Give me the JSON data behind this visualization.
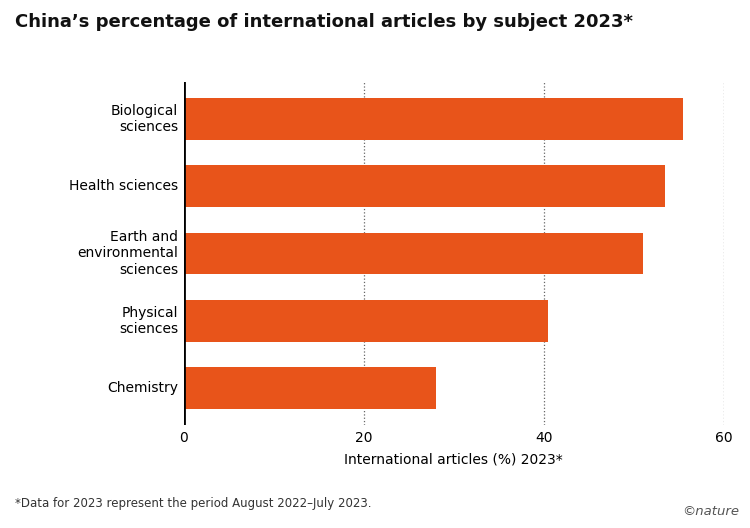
{
  "title": "China’s percentage of international articles by subject 2023*",
  "categories": [
    "Biological\nsciences",
    "Health sciences",
    "Earth and\nenvironmental\nsciences",
    "Physical\nsciences",
    "Chemistry"
  ],
  "values": [
    55.5,
    53.5,
    51.0,
    40.5,
    28.0
  ],
  "bar_color": "#E8541A",
  "xlabel": "International articles (%) 2023*",
  "xlim": [
    0,
    60
  ],
  "xticks": [
    0,
    20,
    40,
    60
  ],
  "footnote": "*Data for 2023 represent the period August 2022–July 2023.",
  "nature_credit": "©nature",
  "background_color": "#ffffff",
  "title_fontsize": 13,
  "axis_fontsize": 10,
  "tick_fontsize": 10,
  "ylabel_fontsize": 10,
  "footnote_fontsize": 8.5,
  "credit_fontsize": 9.5
}
